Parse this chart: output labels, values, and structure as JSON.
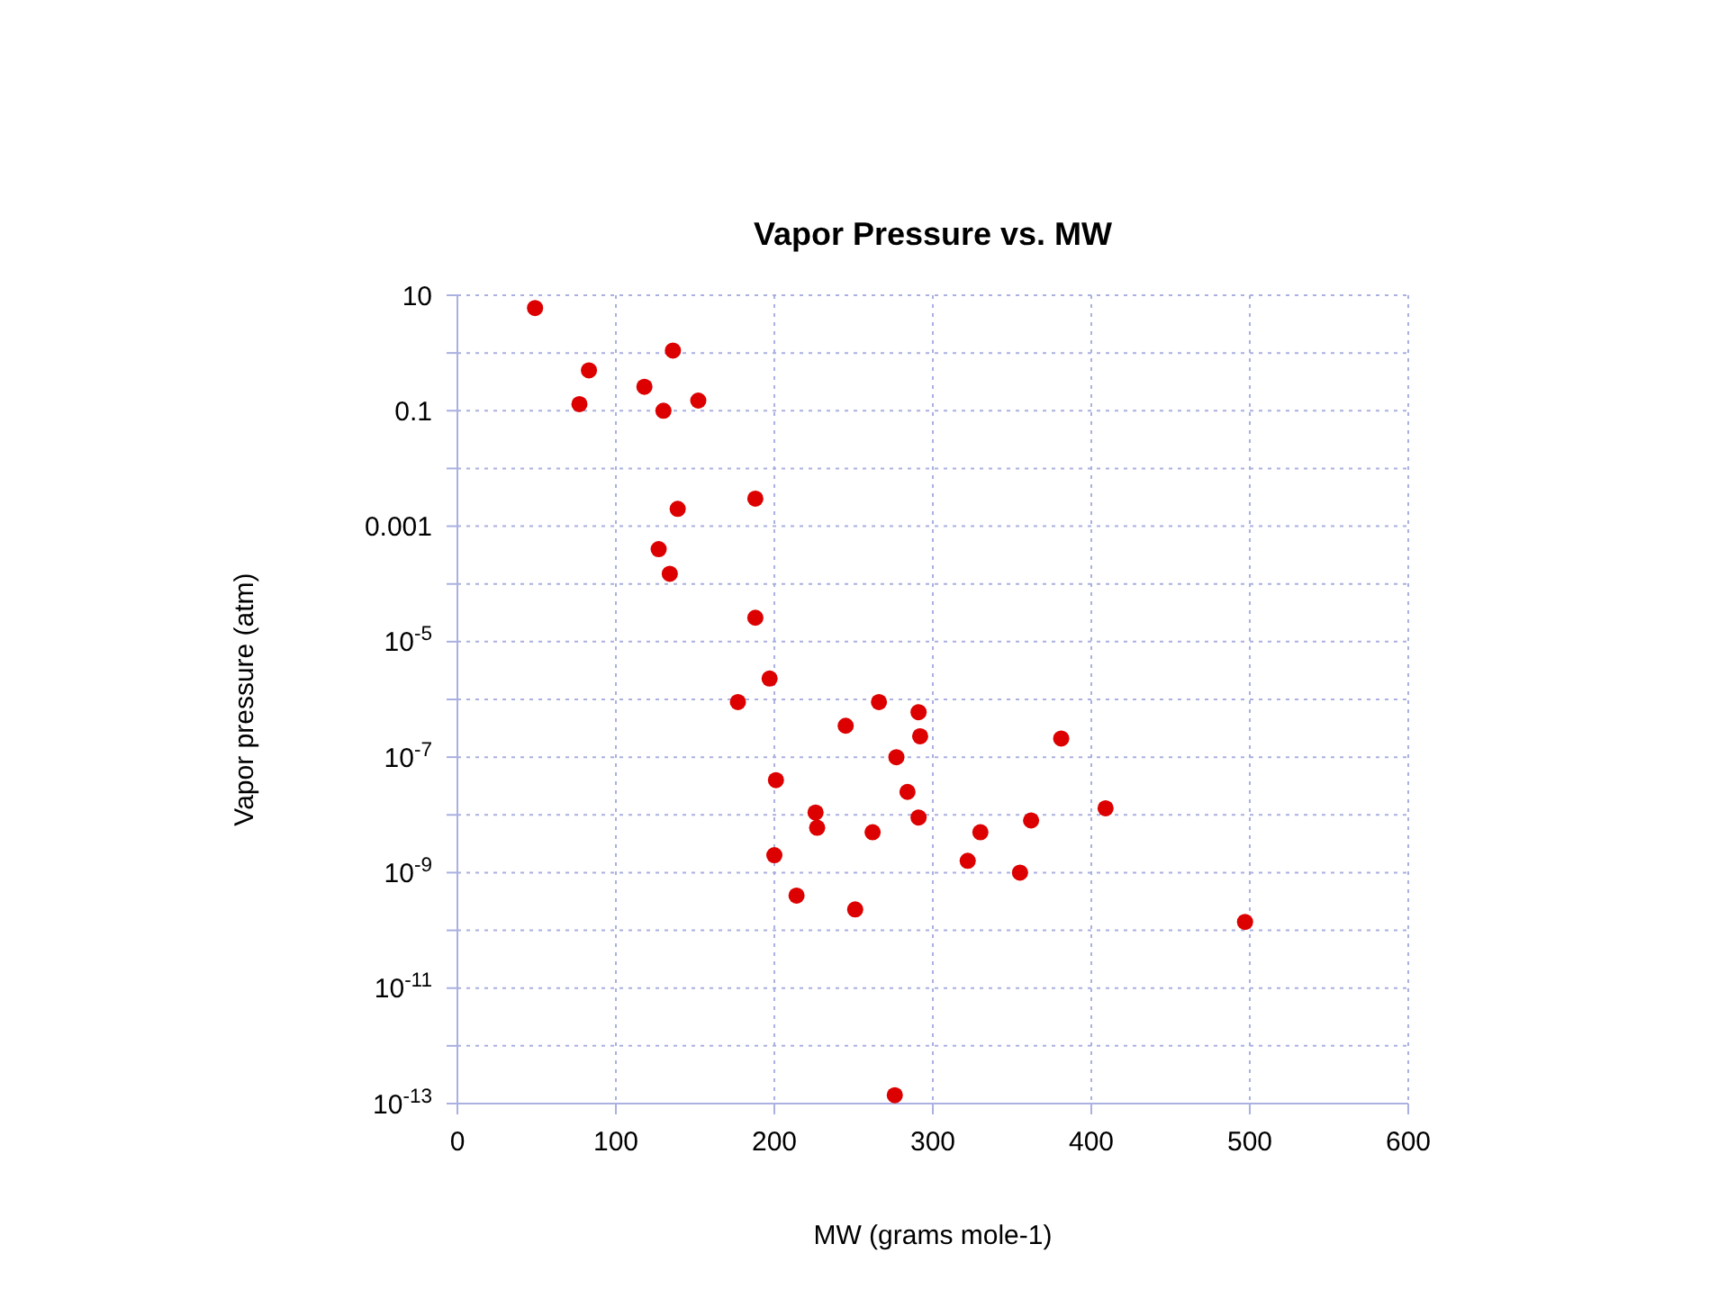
{
  "chart_data": {
    "type": "scatter",
    "title": "Vapor Pressure vs. MW",
    "xlabel": "MW (grams mole-1)",
    "ylabel": "Vapor pressure (atm)",
    "log": "y",
    "grid": true,
    "marker": "circle",
    "xlim": [
      0,
      600
    ],
    "xticks": [
      0,
      100,
      200,
      300,
      400,
      500,
      600
    ],
    "ylim": [
      1e-13,
      10
    ],
    "yticks": [
      10,
      {
        "value": 1,
        "label": null
      },
      0.1,
      {
        "value": 0.01,
        "label": null
      },
      0.001,
      {
        "value": 0.0001,
        "label": null
      },
      {
        "value": 1e-05,
        "label": "10$^{-5}$"
      },
      {
        "value": 1e-06,
        "label": null
      },
      {
        "value": 1e-07,
        "label": "10$^{-7}$"
      },
      {
        "value": 1e-08,
        "label": null
      },
      {
        "value": 1e-09,
        "label": "10$^{-9}$"
      },
      {
        "value": 1e-10,
        "label": null
      },
      {
        "value": 1e-11,
        "label": "10$^{-11}$"
      },
      {
        "value": 1e-12,
        "label": null
      },
      {
        "value": 1e-13,
        "label": "10$^{-13}$"
      }
    ],
    "series": [
      {
        "color": "#dd0000",
        "x": [
          49,
          83,
          77,
          118,
          136,
          130,
          152,
          188,
          139,
          127,
          134,
          188,
          197,
          177,
          266,
          291,
          245,
          292,
          381,
          277,
          201,
          284,
          409,
          226,
          291,
          227,
          362,
          262,
          330,
          200,
          322,
          355,
          214,
          251,
          497,
          276
        ],
        "values": [
          6,
          0.5,
          0.13,
          0.26,
          1.1,
          0.1,
          0.15,
          0.003,
          0.002,
          0.0004,
          0.00015,
          2.6e-05,
          2.3e-06,
          9e-07,
          9e-07,
          6e-07,
          3.5e-07,
          2.3e-07,
          2.1e-07,
          1e-07,
          4e-08,
          2.5e-08,
          1.3e-08,
          1.1e-08,
          9e-09,
          6e-09,
          8e-09,
          5e-09,
          5e-09,
          2e-09,
          1.6e-09,
          1e-09,
          4e-10,
          2.3e-10,
          1.4e-10,
          1.4e-13
        ]
      }
    ]
  }
}
